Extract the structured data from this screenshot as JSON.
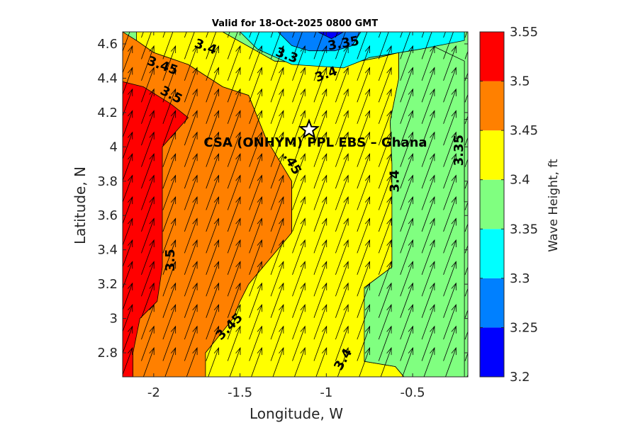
{
  "chart_data": {
    "type": "filled-contour",
    "title": "Valid for 18-Oct-2025 0800 GMT",
    "xlabel": "Longitude, W",
    "ylabel": "Latitude, N",
    "xlim": [
      -2.18,
      -0.18
    ],
    "ylim": [
      2.66,
      4.67
    ],
    "xticks": [
      -2,
      -1.5,
      -1,
      -0.5
    ],
    "xtick_labels": [
      "-2",
      "-1.5",
      "-1",
      "-0.5"
    ],
    "yticks": [
      2.8,
      3.0,
      3.2,
      3.4,
      3.6,
      3.8,
      4.0,
      4.2,
      4.4,
      4.6
    ],
    "ytick_labels": [
      "2.8",
      "3",
      "3.2",
      "3.4",
      "3.6",
      "3.8",
      "4",
      "4.2",
      "4.4",
      "4.6"
    ],
    "colorbar": {
      "label": "Wave Height, ft",
      "levels": [
        3.2,
        3.25,
        3.3,
        3.35,
        3.4,
        3.45,
        3.5,
        3.55
      ],
      "tick_labels": [
        "3.2",
        "3.25",
        "3.3",
        "3.35",
        "3.4",
        "3.45",
        "3.5",
        "3.55"
      ],
      "colors": [
        "#0000ff",
        "#0080ff",
        "#00ffff",
        "#80ff80",
        "#ffff00",
        "#ff8000",
        "#ff0000"
      ]
    },
    "regions": [
      {
        "level": 3.45,
        "color": "#ff8000",
        "polygon": [
          [
            -2.18,
            4.67
          ],
          [
            -2.18,
            2.66
          ],
          [
            -1.7,
            2.66
          ],
          [
            -1.7,
            2.8
          ],
          [
            -1.54,
            3.0
          ],
          [
            -1.5,
            3.1
          ],
          [
            -1.45,
            3.2
          ],
          [
            -1.2,
            3.5
          ],
          [
            -1.2,
            3.8
          ],
          [
            -1.35,
            4.05
          ],
          [
            -1.45,
            4.3
          ],
          [
            -1.6,
            4.35
          ],
          [
            -1.8,
            4.48
          ],
          [
            -2.0,
            4.55
          ],
          [
            -2.1,
            4.62
          ],
          [
            -2.18,
            4.67
          ]
        ]
      },
      {
        "level": 3.4,
        "color": "#ffff00",
        "polygon": [
          [
            -2.1,
            4.67
          ],
          [
            -1.6,
            4.67
          ],
          [
            -1.3,
            4.5
          ],
          [
            -0.9,
            4.48
          ],
          [
            -0.7,
            4.52
          ],
          [
            -0.58,
            4.55
          ],
          [
            -0.58,
            4.4
          ],
          [
            -0.63,
            4.15
          ],
          [
            -0.62,
            3.9
          ],
          [
            -0.62,
            3.4
          ],
          [
            -0.62,
            3.3
          ],
          [
            -0.78,
            3.18
          ],
          [
            -0.78,
            2.75
          ],
          [
            -0.6,
            2.72
          ],
          [
            -0.55,
            2.66
          ],
          [
            -1.7,
            2.66
          ],
          [
            -1.7,
            2.8
          ],
          [
            -1.54,
            3.0
          ],
          [
            -1.5,
            3.1
          ],
          [
            -1.45,
            3.2
          ],
          [
            -1.2,
            3.5
          ],
          [
            -1.2,
            3.8
          ],
          [
            -1.35,
            4.05
          ],
          [
            -1.45,
            4.3
          ],
          [
            -1.6,
            4.35
          ],
          [
            -1.8,
            4.48
          ],
          [
            -2.0,
            4.55
          ],
          [
            -2.1,
            4.62
          ]
        ]
      },
      {
        "level": 3.35,
        "color": "#80ff80",
        "polygon": [
          [
            -1.8,
            4.67
          ],
          [
            -0.65,
            4.67
          ],
          [
            -0.45,
            4.62
          ],
          [
            -0.2,
            4.5
          ],
          [
            -0.2,
            2.66
          ],
          [
            -0.55,
            2.66
          ],
          [
            -0.6,
            2.72
          ],
          [
            -0.78,
            2.75
          ],
          [
            -0.78,
            3.18
          ],
          [
            -0.62,
            3.3
          ],
          [
            -0.62,
            3.9
          ],
          [
            -0.63,
            4.15
          ],
          [
            -0.58,
            4.4
          ],
          [
            -0.58,
            4.55
          ],
          [
            -0.7,
            4.52
          ],
          [
            -0.9,
            4.48
          ],
          [
            -1.3,
            4.5
          ],
          [
            -1.6,
            4.67
          ]
        ]
      },
      {
        "level": 3.5,
        "color": "#ff0000",
        "polygon": [
          [
            -2.18,
            4.38
          ],
          [
            -2.06,
            4.35
          ],
          [
            -1.9,
            4.25
          ],
          [
            -1.8,
            4.17
          ],
          [
            -1.95,
            4.0
          ],
          [
            -1.95,
            3.3
          ],
          [
            -1.98,
            3.1
          ],
          [
            -2.08,
            3.0
          ],
          [
            -2.12,
            2.8
          ],
          [
            -2.12,
            2.66
          ],
          [
            -2.18,
            2.66
          ]
        ]
      },
      {
        "level": 3.3,
        "color": "#00ffff",
        "polygon": [
          [
            -1.5,
            4.67
          ],
          [
            -0.2,
            4.67
          ],
          [
            -0.2,
            4.62
          ],
          [
            -0.45,
            4.57
          ],
          [
            -0.75,
            4.52
          ],
          [
            -0.9,
            4.46
          ],
          [
            -1.2,
            4.48
          ],
          [
            -1.4,
            4.57
          ],
          [
            -1.5,
            4.67
          ]
        ]
      },
      {
        "level": 3.35,
        "color": "#80ff80",
        "polygon": [
          [
            -0.2,
            4.16
          ],
          [
            -0.18,
            4.16
          ],
          [
            -0.18,
            3.68
          ],
          [
            -0.2,
            3.68
          ]
        ]
      },
      {
        "level": 3.25,
        "color": "#0080ff",
        "polygon": [
          [
            -1.28,
            4.67
          ],
          [
            -0.8,
            4.67
          ],
          [
            -0.85,
            4.59
          ],
          [
            -0.95,
            4.56
          ],
          [
            -1.1,
            4.56
          ],
          [
            -1.2,
            4.59
          ]
        ]
      },
      {
        "level": 3.2,
        "color": "#0000ff",
        "polygon": [
          [
            -1.05,
            4.67
          ],
          [
            -0.9,
            4.67
          ],
          [
            -0.97,
            4.63
          ]
        ]
      }
    ],
    "contour_labels": [
      {
        "text": "3.45",
        "x": -1.95,
        "y": 4.47,
        "rotate": 20
      },
      {
        "text": "3.4",
        "x": -1.7,
        "y": 4.58,
        "rotate": 20
      },
      {
        "text": "3.3",
        "x": -1.23,
        "y": 4.53,
        "rotate": 20
      },
      {
        "text": "3.35",
        "x": -0.9,
        "y": 4.6,
        "rotate": -10
      },
      {
        "text": "3.4",
        "x": -1.0,
        "y": 4.42,
        "rotate": -20
      },
      {
        "text": "3.5",
        "x": -1.9,
        "y": 4.3,
        "rotate": 28
      },
      {
        "text": "3.35",
        "x": -0.23,
        "y": 3.98,
        "rotate": -90
      },
      {
        "text": "3.4",
        "x": -0.6,
        "y": 3.8,
        "rotate": -90
      },
      {
        "text": ".45",
        "x": -1.2,
        "y": 3.9,
        "rotate": 60
      },
      {
        "text": "3.5",
        "x": -1.9,
        "y": 3.34,
        "rotate": -90
      },
      {
        "text": "3.45",
        "x": -1.56,
        "y": 2.95,
        "rotate": -45
      },
      {
        "text": "3.4",
        "x": -0.9,
        "y": 2.76,
        "rotate": -60
      }
    ],
    "site": {
      "label": "CSA (ONHYM) PPL EBS  – Ghana",
      "x": -1.1,
      "y": 4.1
    },
    "wave_direction_deg": 70
  }
}
